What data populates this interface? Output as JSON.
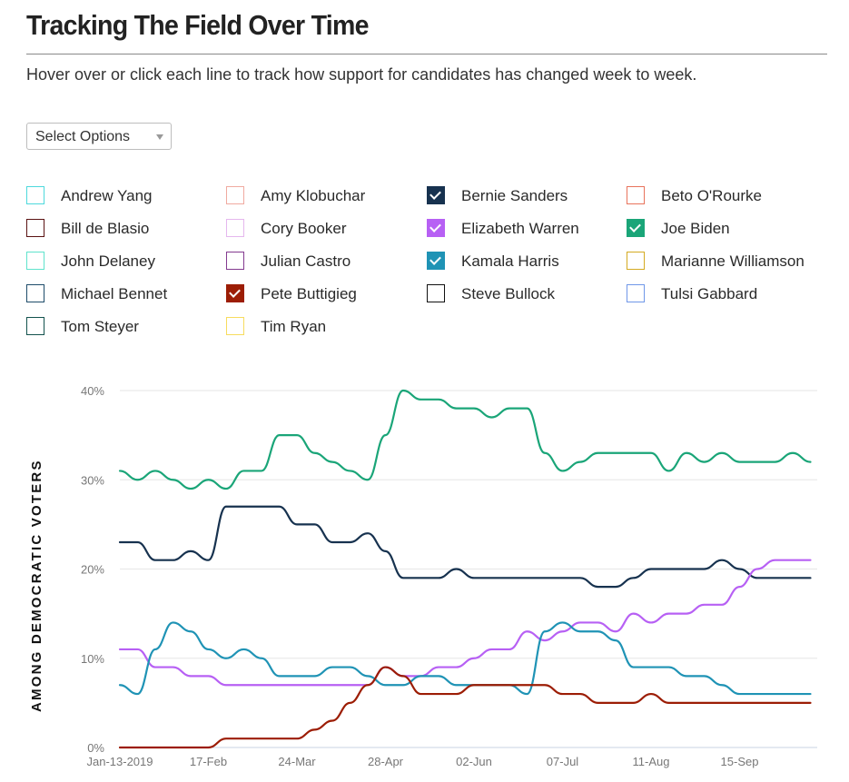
{
  "header": {
    "title": "Tracking The Field Over Time",
    "subtitle": "Hover over or click each line to track how support for candidates has changed week to week."
  },
  "select": {
    "label": "Select Options",
    "icon": "caret-down-icon"
  },
  "legend": [
    {
      "name": "Andrew Yang",
      "color": "#4dd9dc",
      "checked": false
    },
    {
      "name": "Amy Klobuchar",
      "color": "#f0aaa0",
      "checked": false
    },
    {
      "name": "Bernie Sanders",
      "color": "#17324f",
      "checked": true
    },
    {
      "name": "Beto O'Rourke",
      "color": "#e8735c",
      "checked": false
    },
    {
      "name": "Bill de Blasio",
      "color": "#5a1212",
      "checked": false
    },
    {
      "name": "Cory Booker",
      "color": "#e5b7ee",
      "checked": false
    },
    {
      "name": "Elizabeth Warren",
      "color": "#b760f4",
      "checked": true
    },
    {
      "name": "Joe Biden",
      "color": "#1aa578",
      "checked": true
    },
    {
      "name": "John Delaney",
      "color": "#5fe3cc",
      "checked": false
    },
    {
      "name": "Julian Castro",
      "color": "#833a8f",
      "checked": false
    },
    {
      "name": "Kamala Harris",
      "color": "#1f93b5",
      "checked": true
    },
    {
      "name": "Marianne Williamson",
      "color": "#d4aa22",
      "checked": false
    },
    {
      "name": "Michael Bennet",
      "color": "#1e4c6a",
      "checked": false
    },
    {
      "name": "Pete Buttigieg",
      "color": "#9c1d05",
      "checked": true
    },
    {
      "name": "Steve Bullock",
      "color": "#111111",
      "checked": false
    },
    {
      "name": "Tulsi Gabbard",
      "color": "#6f97e8",
      "checked": false
    },
    {
      "name": "Tom Steyer",
      "color": "#13524d",
      "checked": false
    },
    {
      "name": "Tim Ryan",
      "color": "#f7dc5e",
      "checked": false
    }
  ],
  "chart_data": {
    "type": "line",
    "title": "Tracking The Field Over Time",
    "xlabel": "",
    "ylabel": "AMONG DEMOCRATIC VOTERS",
    "ylim": [
      0,
      40
    ],
    "yticks": [
      "0%",
      "10%",
      "20%",
      "30%",
      "40%"
    ],
    "ytick_values": [
      0,
      10,
      20,
      30,
      40
    ],
    "grid": true,
    "x_unit": "weeks since Jan-13-2019",
    "x_count": 40,
    "xticks": [
      {
        "week": 0,
        "label": "Jan-13-2019"
      },
      {
        "week": 5,
        "label": "17-Feb"
      },
      {
        "week": 10,
        "label": "24-Mar"
      },
      {
        "week": 15,
        "label": "28-Apr"
      },
      {
        "week": 20,
        "label": "02-Jun"
      },
      {
        "week": 25,
        "label": "07-Jul"
      },
      {
        "week": 30,
        "label": "11-Aug"
      },
      {
        "week": 35,
        "label": "15-Sep"
      }
    ],
    "series": [
      {
        "name": "Joe Biden",
        "color": "#1aa578",
        "values": [
          31,
          30,
          31,
          30,
          29,
          30,
          29,
          31,
          31,
          35,
          35,
          33,
          32,
          31,
          30,
          35,
          40,
          39,
          39,
          38,
          38,
          37,
          38,
          38,
          33,
          31,
          32,
          33,
          33,
          33,
          33,
          31,
          33,
          32,
          33,
          32,
          32,
          32,
          33,
          32
        ]
      },
      {
        "name": "Bernie Sanders",
        "color": "#17324f",
        "values": [
          23,
          23,
          21,
          21,
          22,
          21,
          27,
          27,
          27,
          27,
          25,
          25,
          23,
          23,
          24,
          22,
          19,
          19,
          19,
          20,
          19,
          19,
          19,
          19,
          19,
          19,
          19,
          18,
          18,
          19,
          20,
          20,
          20,
          20,
          21,
          20,
          19,
          19,
          19,
          19
        ]
      },
      {
        "name": "Elizabeth Warren",
        "color": "#b760f4",
        "values": [
          11,
          11,
          9,
          9,
          8,
          8,
          7,
          7,
          7,
          7,
          7,
          7,
          7,
          7,
          7,
          9,
          8,
          8,
          9,
          9,
          10,
          11,
          11,
          13,
          12,
          13,
          14,
          14,
          13,
          15,
          14,
          15,
          15,
          16,
          16,
          18,
          20,
          21,
          21,
          21
        ]
      },
      {
        "name": "Kamala Harris",
        "color": "#1f93b5",
        "values": [
          7,
          6,
          11,
          14,
          13,
          11,
          10,
          11,
          10,
          8,
          8,
          8,
          9,
          9,
          8,
          7,
          7,
          8,
          8,
          7,
          7,
          7,
          7,
          6,
          13,
          14,
          13,
          13,
          12,
          9,
          9,
          9,
          8,
          8,
          7,
          6,
          6,
          6,
          6,
          6
        ]
      },
      {
        "name": "Pete Buttigieg",
        "color": "#9c1d05",
        "values": [
          0,
          0,
          0,
          0,
          0,
          0,
          1,
          1,
          1,
          1,
          1,
          2,
          3,
          5,
          7,
          9,
          8,
          6,
          6,
          6,
          7,
          7,
          7,
          7,
          7,
          6,
          6,
          5,
          5,
          5,
          6,
          5,
          5,
          5,
          5,
          5,
          5,
          5,
          5,
          5
        ]
      }
    ]
  }
}
